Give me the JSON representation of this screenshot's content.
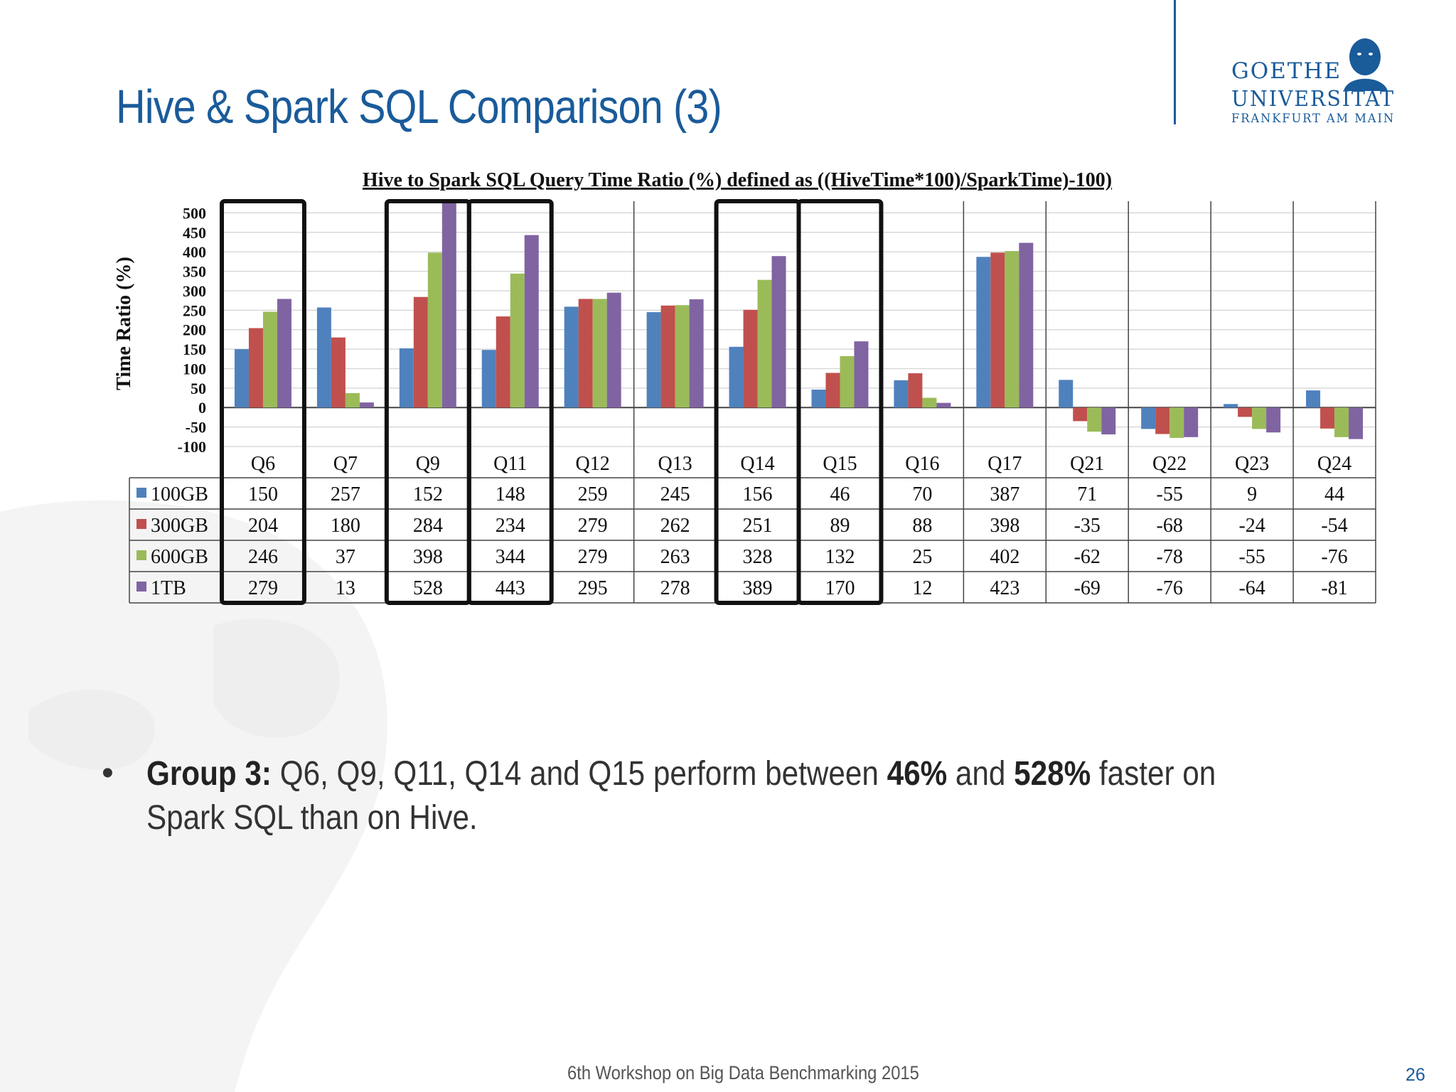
{
  "slide": {
    "title": "Hive & Spark SQL Comparison (3)",
    "logo_line1": "GOETHE",
    "logo_line2": "UNIVERSITÄT",
    "logo_line3": "FRANKFURT AM MAIN",
    "bullet": {
      "label": "Group 3:",
      "text_a": " Q6, Q9, Q11, Q14 and Q15 perform between ",
      "bold_a": "46%",
      "text_b": " and ",
      "bold_b": "528%",
      "text_c": " faster on Spark SQL than on Hive."
    },
    "footer": "6th Workshop on Big Data Benchmarking 2015",
    "page_number": "26",
    "colors": {
      "title": "#1a5b9a",
      "text": "#333333"
    }
  },
  "chart_data": {
    "type": "bar",
    "title": "Hive to Spark SQL Query Time Ratio (%) defined as ((HiveTime*100)/SparkTime)-100)",
    "ylabel": "Time Ratio (%)",
    "ylim": [
      -100,
      500
    ],
    "yticks": [
      "500",
      "450",
      "400",
      "350",
      "300",
      "250",
      "200",
      "150",
      "100",
      "50",
      "0",
      "-50",
      "-100"
    ],
    "grid": true,
    "categories": [
      "Q6",
      "Q7",
      "Q9",
      "Q11",
      "Q12",
      "Q13",
      "Q14",
      "Q15",
      "Q16",
      "Q17",
      "Q21",
      "Q22",
      "Q23",
      "Q24"
    ],
    "series": [
      {
        "name": "100GB",
        "color": "#4f81bd",
        "values": [
          150,
          257,
          152,
          148,
          259,
          245,
          156,
          46,
          70,
          387,
          71,
          -55,
          9,
          44
        ]
      },
      {
        "name": "300GB",
        "color": "#c0504d",
        "values": [
          204,
          180,
          284,
          234,
          279,
          262,
          251,
          89,
          88,
          398,
          -35,
          -68,
          -24,
          -54
        ]
      },
      {
        "name": "600GB",
        "color": "#9bbb59",
        "values": [
          246,
          37,
          398,
          344,
          279,
          263,
          328,
          132,
          25,
          402,
          -62,
          -78,
          -55,
          -76
        ]
      },
      {
        "name": "1TB",
        "color": "#8064a2",
        "values": [
          279,
          13,
          528,
          443,
          295,
          278,
          389,
          170,
          12,
          423,
          -69,
          -76,
          -64,
          -81
        ]
      }
    ],
    "highlighted_groups": [
      [
        "Q6"
      ],
      [
        "Q9"
      ],
      [
        "Q11"
      ],
      [
        "Q14"
      ],
      [
        "Q15"
      ]
    ]
  }
}
